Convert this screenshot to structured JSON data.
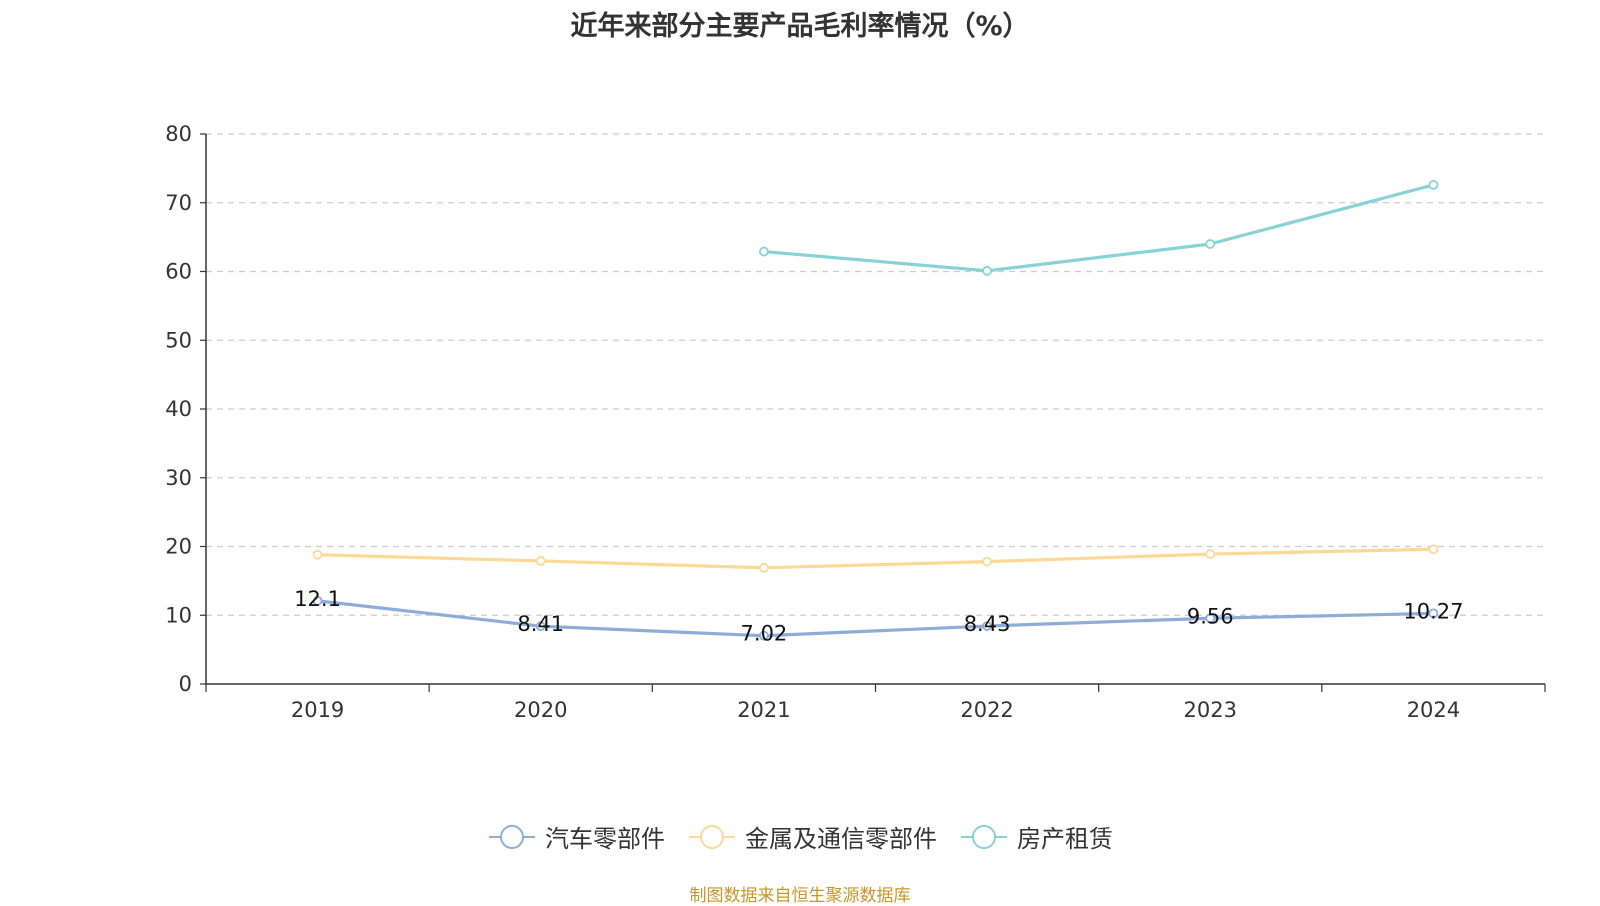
{
  "chart_data": {
    "type": "line",
    "title": "近年来部分主要产品毛利率情况（%）",
    "categories": [
      "2019",
      "2020",
      "2021",
      "2022",
      "2023",
      "2024"
    ],
    "ylim": [
      0,
      80
    ],
    "yticks": [
      0,
      10,
      20,
      30,
      40,
      50,
      60,
      70,
      80
    ],
    "grid": "horizontal-dashed",
    "legend_position": "bottom-center",
    "series": [
      {
        "name": "汽车零部件",
        "color": "#8eacd8",
        "values": [
          12.1,
          8.41,
          7.02,
          8.43,
          9.56,
          10.27
        ],
        "labels": [
          "12.1",
          "8.41",
          "7.02",
          "8.43",
          "9.56",
          "10.27"
        ]
      },
      {
        "name": "金属及通信零部件",
        "color": "#fdd995",
        "values": [
          18.8,
          17.9,
          16.9,
          17.8,
          18.9,
          19.6
        ],
        "labels": null
      },
      {
        "name": "房产租赁",
        "color": "#86d2d4",
        "values": [
          null,
          null,
          62.9,
          60.1,
          64.0,
          72.6
        ],
        "labels": null
      }
    ]
  },
  "source": "制图数据来自恒生聚源数据库"
}
